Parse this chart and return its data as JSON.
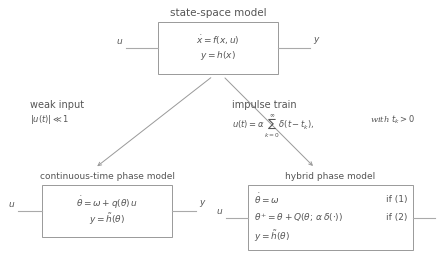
{
  "bg_color": "#ffffff",
  "box_color": "#ffffff",
  "box_edge_color": "#999999",
  "text_color": "#555555",
  "arrow_color": "#999999",
  "line_color": "#aaaaaa",
  "title": "state-space model",
  "box1_lines": [
    "$\\dot{x} = f(x, u)$",
    "$y = h(x)$"
  ],
  "label_weak": "weak input",
  "label_weak_sub": "$|u(t)| \\ll 1$",
  "label_impulse": "impulse train",
  "label_impulse_sub1": "$u(t) = \\alpha\\, \\sum_{k=0}^{\\infty} \\delta(t - t_k),$",
  "label_impulse_sub2": "with $t_k > 0$",
  "label_ctpm": "continuous-time phase model",
  "box2_line1": "$\\dot{\\theta} = \\omega + q(\\theta)\\, u$",
  "box2_line2": "$y = \\tilde{h}(\\theta)$",
  "label_hpm": "hybrid phase model",
  "box3_line1": "$\\dot{\\theta} = \\omega$",
  "box3_if1": "if (1)",
  "box3_line2": "$\\theta^{+} = \\theta + Q(\\theta;\\, \\alpha\\, \\delta(\\cdot))$",
  "box3_if2": "if (2)",
  "box3_line3": "$y = \\tilde{h}(\\theta)$",
  "fs_title": 7.5,
  "fs_label": 7.0,
  "fs_eq": 6.5,
  "fs_sub": 6.0,
  "fs_io": 6.5
}
